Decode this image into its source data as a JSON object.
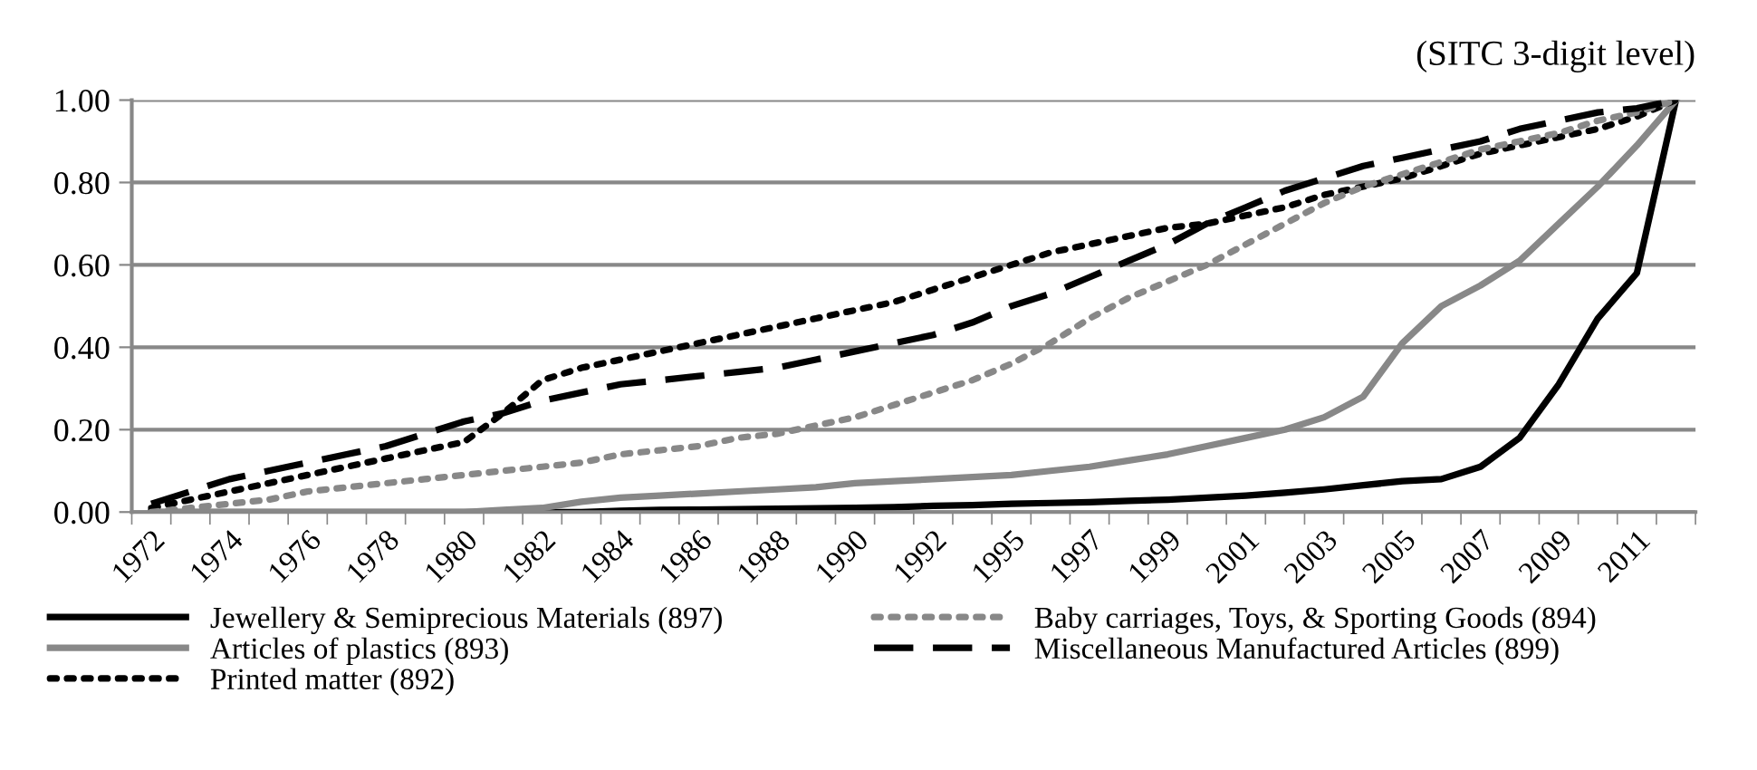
{
  "chart_data": {
    "type": "line",
    "title": "(SITC 3-digit level)",
    "categories": [
      "1972",
      null,
      "1974",
      null,
      "1976",
      null,
      "1978",
      null,
      "1980",
      null,
      "1982",
      null,
      "1984",
      null,
      "1986",
      null,
      "1988",
      null,
      "1990",
      null,
      "1992",
      null,
      "1995",
      null,
      "1997",
      null,
      "1999",
      null,
      "2001",
      null,
      "2003",
      null,
      "2005",
      null,
      "2007",
      null,
      "2009",
      null,
      "2011",
      null
    ],
    "series": [
      {
        "name": "Jewellery & Semiprecious Materials (897)",
        "color": "#000000",
        "line_style": "solid",
        "values": [
          0,
          0,
          0,
          0,
          0,
          0,
          0,
          0,
          0,
          0,
          0,
          0,
          0.003,
          0.005,
          0.006,
          0.007,
          0.008,
          0.009,
          0.01,
          0.012,
          0.015,
          0.017,
          0.02,
          0.022,
          0.024,
          0.027,
          0.03,
          0.035,
          0.04,
          0.047,
          0.055,
          0.065,
          0.075,
          0.08,
          0.11,
          0.18,
          0.31,
          0.47,
          0.58,
          1.0
        ]
      },
      {
        "name": "Articles of plastics (893)",
        "color": "#888888",
        "line_style": "solid",
        "values": [
          0,
          0,
          0,
          0,
          0,
          0,
          0,
          0,
          0,
          0.005,
          0.01,
          0.025,
          0.035,
          0.04,
          0.045,
          0.05,
          0.055,
          0.06,
          0.07,
          0.075,
          0.08,
          0.085,
          0.09,
          0.1,
          0.11,
          0.125,
          0.14,
          0.16,
          0.18,
          0.2,
          0.23,
          0.28,
          0.41,
          0.5,
          0.55,
          0.61,
          0.7,
          0.79,
          0.89,
          1.0
        ]
      },
      {
        "name": "Printed matter (892)",
        "color": "#000000",
        "line_style": "dotted",
        "values": [
          0.01,
          0.03,
          0.05,
          0.07,
          0.09,
          0.11,
          0.13,
          0.15,
          0.17,
          0.24,
          0.32,
          0.35,
          0.37,
          0.39,
          0.41,
          0.43,
          0.45,
          0.47,
          0.49,
          0.51,
          0.54,
          0.57,
          0.6,
          0.63,
          0.65,
          0.67,
          0.69,
          0.7,
          0.72,
          0.74,
          0.77,
          0.79,
          0.81,
          0.84,
          0.87,
          0.89,
          0.91,
          0.93,
          0.96,
          1.0
        ]
      },
      {
        "name": "Baby carriages, Toys, & Sporting Goods (894)",
        "color": "#888888",
        "line_style": "dotted",
        "values": [
          0,
          0.01,
          0.02,
          0.03,
          0.05,
          0.06,
          0.07,
          0.08,
          0.09,
          0.1,
          0.11,
          0.12,
          0.14,
          0.15,
          0.16,
          0.18,
          0.19,
          0.21,
          0.23,
          0.26,
          0.29,
          0.32,
          0.36,
          0.41,
          0.47,
          0.52,
          0.56,
          0.6,
          0.65,
          0.7,
          0.75,
          0.79,
          0.82,
          0.85,
          0.88,
          0.9,
          0.92,
          0.95,
          0.97,
          1.0
        ]
      },
      {
        "name": "Miscellaneous Manufactured Articles (899)",
        "color": "#000000",
        "line_style": "dashed",
        "values": [
          0.02,
          0.05,
          0.08,
          0.1,
          0.12,
          0.14,
          0.16,
          0.19,
          0.22,
          0.24,
          0.27,
          0.29,
          0.31,
          0.32,
          0.33,
          0.34,
          0.35,
          0.37,
          0.39,
          0.41,
          0.43,
          0.46,
          0.5,
          0.53,
          0.57,
          0.61,
          0.65,
          0.7,
          0.74,
          0.78,
          0.81,
          0.84,
          0.86,
          0.88,
          0.9,
          0.93,
          0.95,
          0.97,
          0.98,
          1.0
        ]
      }
    ],
    "ylim": [
      0,
      1.0
    ],
    "yticks": [
      {
        "value": 0,
        "label": "0.00"
      },
      {
        "value": 0.2,
        "label": "0.20"
      },
      {
        "value": 0.4,
        "label": "0.40"
      },
      {
        "value": 0.6,
        "label": "0.60"
      },
      {
        "value": 0.8,
        "label": "0.80"
      },
      {
        "value": 1.0,
        "label": "1.00"
      }
    ],
    "grid": "y",
    "legend": "bottom",
    "marker": "none"
  }
}
